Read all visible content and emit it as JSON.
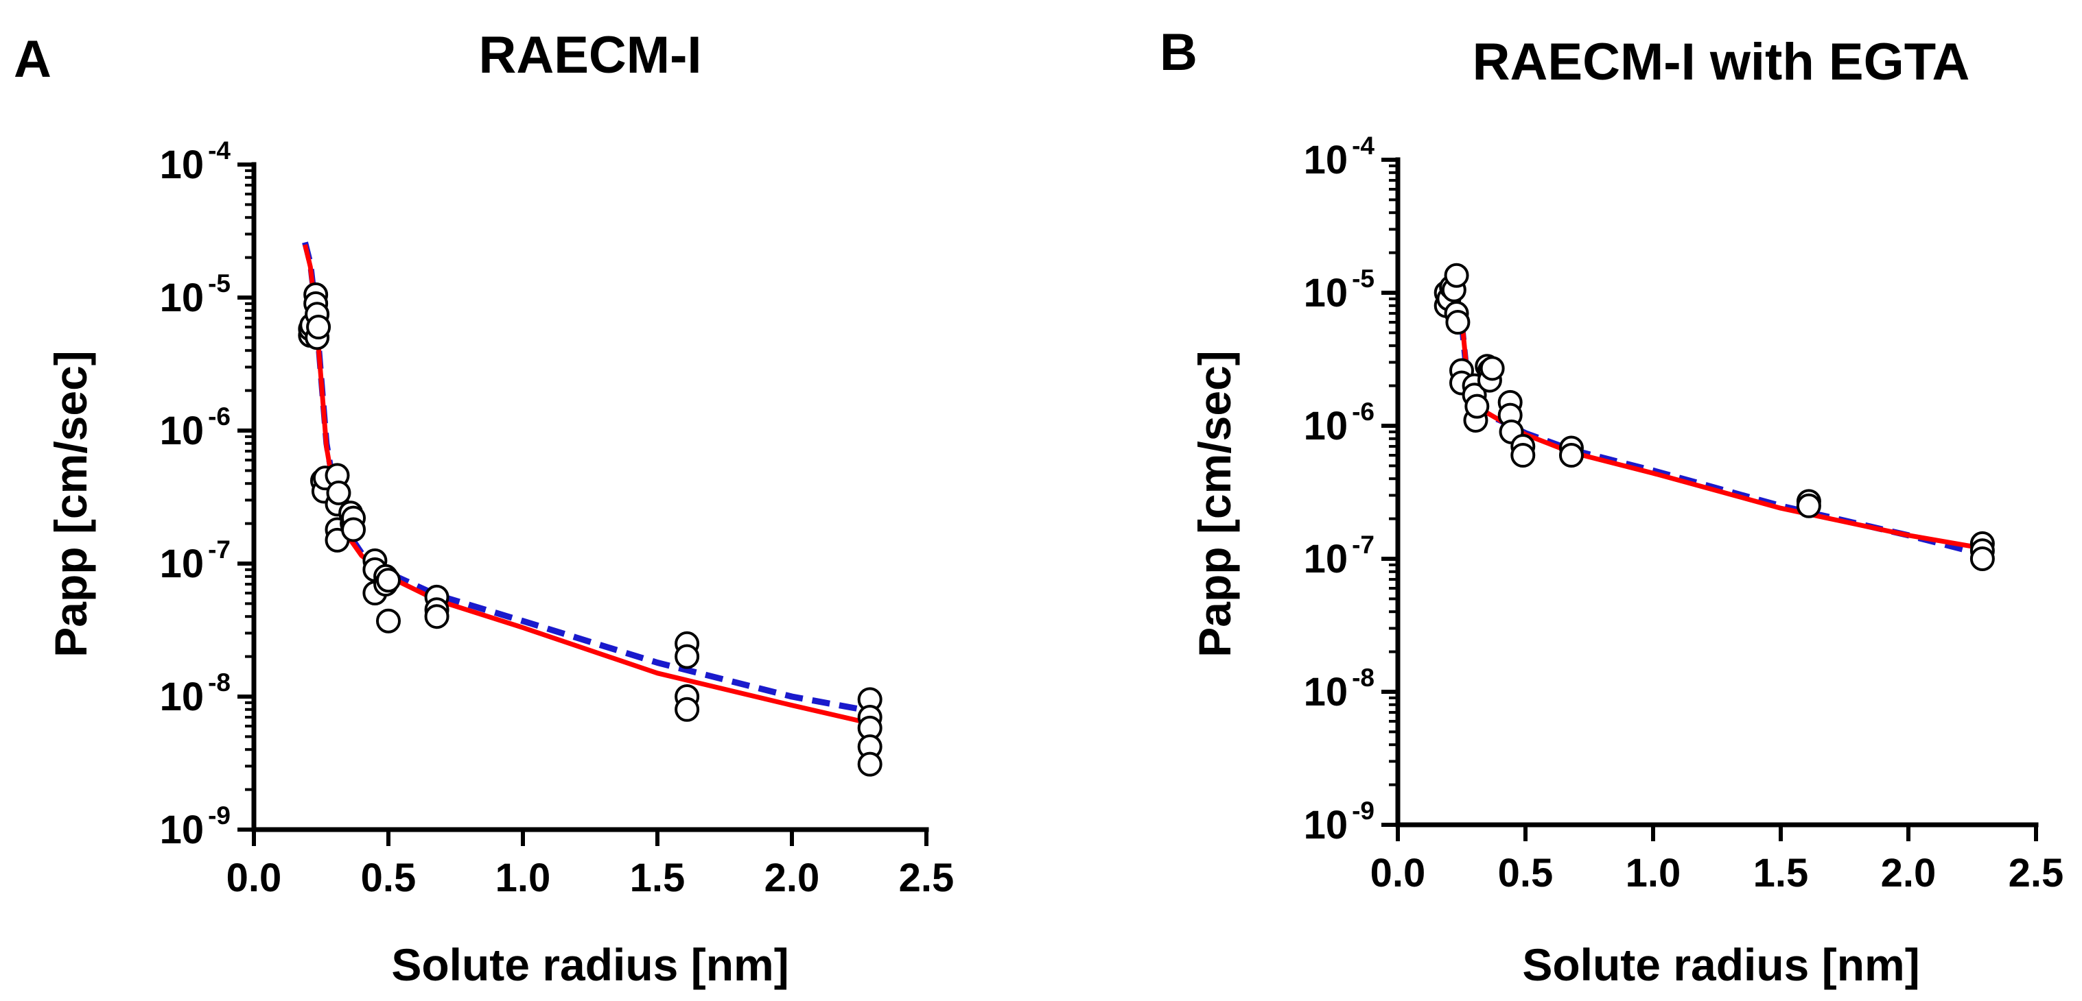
{
  "colors": {
    "fit_solid": "#ff0000",
    "fit_dashed": "#1a1acc",
    "marker_fill": "#ffffff",
    "axis": "#000000"
  },
  "chart_data": [
    {
      "type": "scatter",
      "panel_letter": "A",
      "title": "RAECM-I",
      "xlabel": "Solute radius [nm]",
      "ylabel": "Papp [cm/sec]",
      "xlim": [
        0.0,
        2.5
      ],
      "ylim": [
        1e-09,
        0.0001
      ],
      "yscale": "log",
      "grid": false,
      "xticks": [
        "0.0",
        "0.5",
        "1.0",
        "1.5",
        "2.0",
        "2.5"
      ],
      "yticks": [
        {
          "base": "10",
          "exp": "-4"
        },
        {
          "base": "10",
          "exp": "-5"
        },
        {
          "base": "10",
          "exp": "-6"
        },
        {
          "base": "10",
          "exp": "-7"
        },
        {
          "base": "10",
          "exp": "-8"
        },
        {
          "base": "10",
          "exp": "-9"
        }
      ],
      "series": [
        {
          "name": "data",
          "kind": "markers",
          "points": [
            [
              0.21,
              5.2e-06
            ],
            [
              0.21,
              5.8e-06
            ],
            [
              0.215,
              6.2e-06
            ],
            [
              0.23,
              1.05e-05
            ],
            [
              0.23,
              9e-06
            ],
            [
              0.235,
              7.5e-06
            ],
            [
              0.235,
              5e-06
            ],
            [
              0.24,
              6e-06
            ],
            [
              0.255,
              4.2e-07
            ],
            [
              0.26,
              3.5e-07
            ],
            [
              0.265,
              4.4e-07
            ],
            [
              0.31,
              4.6e-07
            ],
            [
              0.31,
              2.8e-07
            ],
            [
              0.31,
              1.8e-07
            ],
            [
              0.31,
              1.5e-07
            ],
            [
              0.315,
              3.4e-07
            ],
            [
              0.36,
              2.4e-07
            ],
            [
              0.365,
              2e-07
            ],
            [
              0.37,
              2.2e-07
            ],
            [
              0.37,
              1.8e-07
            ],
            [
              0.45,
              1.05e-07
            ],
            [
              0.45,
              9e-08
            ],
            [
              0.45,
              6e-08
            ],
            [
              0.49,
              8e-08
            ],
            [
              0.49,
              7e-08
            ],
            [
              0.5,
              7.5e-08
            ],
            [
              0.5,
              3.7e-08
            ],
            [
              0.68,
              5.6e-08
            ],
            [
              0.68,
              4.5e-08
            ],
            [
              0.68,
              4e-08
            ],
            [
              1.61,
              2.5e-08
            ],
            [
              1.61,
              2e-08
            ],
            [
              1.61,
              1e-08
            ],
            [
              1.61,
              8e-09
            ],
            [
              2.29,
              9.5e-09
            ],
            [
              2.29,
              7e-09
            ],
            [
              2.29,
              5.8e-09
            ],
            [
              2.29,
              4.2e-09
            ],
            [
              2.29,
              3.1e-09
            ]
          ]
        },
        {
          "name": "fit (dashed)",
          "kind": "dashed-line",
          "points": [
            [
              0.19,
              2.6e-05
            ],
            [
              0.21,
              1.8e-05
            ],
            [
              0.23,
              8e-06
            ],
            [
              0.25,
              2.5e-06
            ],
            [
              0.27,
              8e-07
            ],
            [
              0.3,
              3.5e-07
            ],
            [
              0.35,
              1.7e-07
            ],
            [
              0.4,
              1.2e-07
            ],
            [
              0.5,
              8.5e-08
            ],
            [
              0.68,
              5.8e-08
            ],
            [
              1.0,
              3.7e-08
            ],
            [
              1.5,
              1.8e-08
            ],
            [
              2.0,
              1e-08
            ],
            [
              2.29,
              7.8e-09
            ]
          ]
        },
        {
          "name": "fit (solid)",
          "kind": "solid-line",
          "points": [
            [
              0.19,
              2.5e-05
            ],
            [
              0.21,
              1.7e-05
            ],
            [
              0.23,
              7.5e-06
            ],
            [
              0.25,
              2.4e-06
            ],
            [
              0.27,
              7.5e-07
            ],
            [
              0.3,
              3.3e-07
            ],
            [
              0.35,
              1.6e-07
            ],
            [
              0.4,
              1.15e-07
            ],
            [
              0.5,
              8e-08
            ],
            [
              0.68,
              5.3e-08
            ],
            [
              1.0,
              3.3e-08
            ],
            [
              1.5,
              1.5e-08
            ],
            [
              2.0,
              8.6e-09
            ],
            [
              2.29,
              6.3e-09
            ]
          ]
        }
      ]
    },
    {
      "type": "scatter",
      "panel_letter": "B",
      "title": "RAECM-I with EGTA",
      "xlabel": "Solute radius [nm]",
      "ylabel": "Papp [cm/sec]",
      "xlim": [
        0.0,
        2.5
      ],
      "ylim": [
        1e-09,
        0.0001
      ],
      "yscale": "log",
      "grid": false,
      "xticks": [
        "0.0",
        "0.5",
        "1.0",
        "1.5",
        "2.0",
        "2.5"
      ],
      "yticks": [
        {
          "base": "10",
          "exp": "-4"
        },
        {
          "base": "10",
          "exp": "-5"
        },
        {
          "base": "10",
          "exp": "-6"
        },
        {
          "base": "10",
          "exp": "-7"
        },
        {
          "base": "10",
          "exp": "-8"
        },
        {
          "base": "10",
          "exp": "-9"
        }
      ],
      "series": [
        {
          "name": "data",
          "kind": "markers",
          "points": [
            [
              0.19,
              1e-05
            ],
            [
              0.19,
              8e-06
            ],
            [
              0.2,
              9e-06
            ],
            [
              0.21,
              1.1e-05
            ],
            [
              0.22,
              1.05e-05
            ],
            [
              0.23,
              1.35e-05
            ],
            [
              0.23,
              7e-06
            ],
            [
              0.235,
              6e-06
            ],
            [
              0.25,
              2.6e-06
            ],
            [
              0.25,
              2.1e-06
            ],
            [
              0.3,
              2e-06
            ],
            [
              0.3,
              1.7e-06
            ],
            [
              0.305,
              1.1e-06
            ],
            [
              0.31,
              1.4e-06
            ],
            [
              0.35,
              2.8e-06
            ],
            [
              0.36,
              2.6e-06
            ],
            [
              0.36,
              2.2e-06
            ],
            [
              0.37,
              2.7e-06
            ],
            [
              0.44,
              1.5e-06
            ],
            [
              0.44,
              1.2e-06
            ],
            [
              0.445,
              9e-07
            ],
            [
              0.49,
              7e-07
            ],
            [
              0.49,
              6e-07
            ],
            [
              0.68,
              6.8e-07
            ],
            [
              0.68,
              6e-07
            ],
            [
              1.61,
              2.7e-07
            ],
            [
              1.61,
              2.5e-07
            ],
            [
              2.29,
              1.3e-07
            ],
            [
              2.29,
              1.15e-07
            ],
            [
              2.29,
              1e-07
            ]
          ]
        },
        {
          "name": "fit (dashed)",
          "kind": "dashed-line",
          "points": [
            [
              0.25,
              6e-06
            ],
            [
              0.27,
              2.5e-06
            ],
            [
              0.3,
              1.5e-06
            ],
            [
              0.35,
              1.2e-06
            ],
            [
              0.4,
              1.1e-06
            ],
            [
              0.5,
              8.8e-07
            ],
            [
              0.68,
              6.6e-07
            ],
            [
              1.0,
              4.6e-07
            ],
            [
              1.5,
              2.5e-07
            ],
            [
              2.0,
              1.5e-07
            ],
            [
              2.29,
              1.08e-07
            ]
          ]
        },
        {
          "name": "fit (solid)",
          "kind": "solid-line",
          "points": [
            [
              0.25,
              6.5e-06
            ],
            [
              0.27,
              2.6e-06
            ],
            [
              0.3,
              1.5e-06
            ],
            [
              0.35,
              1.25e-06
            ],
            [
              0.4,
              1.1e-06
            ],
            [
              0.5,
              8.6e-07
            ],
            [
              0.68,
              6.3e-07
            ],
            [
              1.0,
              4.4e-07
            ],
            [
              1.5,
              2.4e-07
            ],
            [
              2.0,
              1.5e-07
            ],
            [
              2.29,
              1.2e-07
            ]
          ]
        }
      ]
    }
  ]
}
